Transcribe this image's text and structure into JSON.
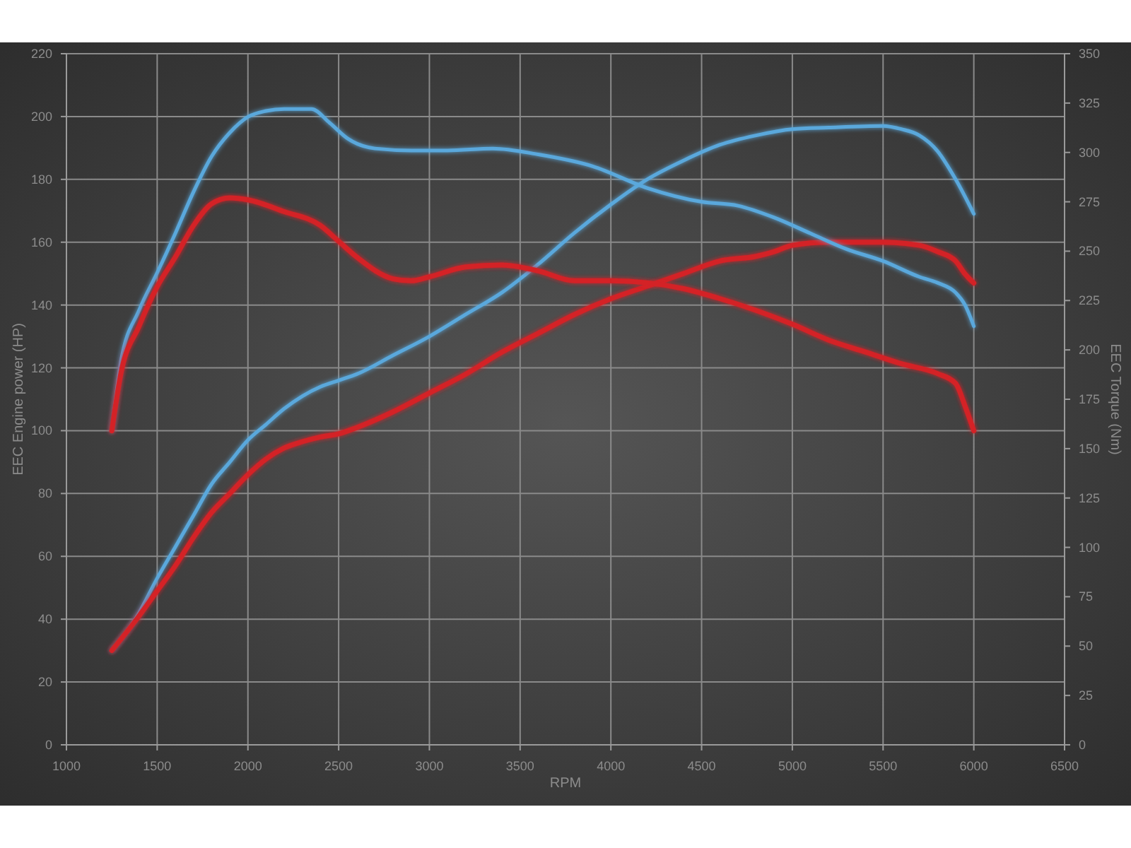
{
  "chart_data": {
    "type": "line",
    "xlabel": "RPM",
    "ylabel": "EEC Engine power (HP)",
    "y2label": "EEC Torque (Nm)",
    "xlim": [
      1000,
      6500
    ],
    "xticks": [
      1000,
      1500,
      2000,
      2500,
      3000,
      3500,
      4000,
      4500,
      5000,
      5500,
      6000,
      6500
    ],
    "ylim": [
      0,
      220
    ],
    "yticks": [
      0,
      20,
      40,
      60,
      80,
      100,
      120,
      140,
      160,
      180,
      200,
      220
    ],
    "y2lim": [
      0,
      350
    ],
    "y2ticks": [
      0,
      25,
      50,
      75,
      100,
      125,
      150,
      175,
      200,
      225,
      250,
      275,
      300,
      325,
      350
    ],
    "grid": true,
    "marker": "none",
    "line_style": "solid",
    "series": [
      {
        "color": "#5aa8dc",
        "x": [
          1250,
          1400,
          1500,
          1600,
          1700,
          1800,
          1900,
          2000,
          2100,
          2200,
          2300,
          2400,
          2500,
          2600,
          2800,
          3000,
          3200,
          3400,
          3600,
          3800,
          4000,
          4200,
          4400,
          4600,
          4800,
          5000,
          5200,
          5500,
          5600,
          5700,
          5800,
          5900,
          6000
        ],
        "values": [
          30,
          42,
          53,
          63,
          73,
          83,
          90,
          97,
          102,
          107,
          111,
          114,
          116,
          118,
          124,
          130,
          137,
          144,
          153,
          163,
          172,
          180,
          186,
          191,
          194,
          196,
          196.5,
          197,
          196,
          194,
          189,
          180,
          169
        ]
      },
      {
        "color": "#d42028",
        "x": [
          1250,
          1400,
          1500,
          1600,
          1700,
          1800,
          1900,
          2000,
          2100,
          2200,
          2300,
          2400,
          2500,
          2600,
          2800,
          3000,
          3200,
          3400,
          3600,
          3800,
          4000,
          4200,
          4400,
          4600,
          4800,
          4900,
          5000,
          5200,
          5500,
          5700,
          5800,
          5900,
          5950,
          6000
        ],
        "values": [
          30,
          41,
          49,
          57,
          66,
          74,
          80,
          86,
          91,
          94.5,
          96.5,
          98,
          99,
          101,
          106,
          112,
          118,
          125,
          131,
          137,
          142,
          146,
          150,
          154,
          155.5,
          157,
          159,
          160,
          160,
          159,
          157,
          154,
          150,
          147
        ]
      },
      {
        "color": "#5aa8dc",
        "axis": "y2",
        "x": [
          1250,
          1300,
          1400,
          1500,
          1600,
          1700,
          1800,
          1900,
          2000,
          2100,
          2200,
          2350,
          2450,
          2550,
          2700,
          2900,
          3100,
          3350,
          3600,
          3900,
          4200,
          4500,
          4700,
          4900,
          5100,
          5300,
          5500,
          5700,
          5800,
          5900,
          5950,
          6000
        ],
        "values": [
          159,
          194,
          220,
          239,
          259,
          280,
          298,
          310,
          318,
          321,
          322,
          322,
          315,
          307,
          302,
          301,
          301,
          302,
          299,
          293,
          282,
          275,
          273,
          267,
          259,
          251,
          245,
          237,
          234,
          229,
          223,
          212
        ]
      },
      {
        "color": "#d42028",
        "axis": "y2",
        "x": [
          1250,
          1300,
          1400,
          1500,
          1600,
          1700,
          1800,
          1900,
          2000,
          2200,
          2400,
          2500,
          2600,
          2800,
          2900,
          3000,
          3200,
          3400,
          3600,
          3800,
          4000,
          4200,
          4400,
          4600,
          4800,
          5000,
          5200,
          5400,
          5600,
          5800,
          5900,
          5950,
          6000
        ],
        "values": [
          159,
          188,
          212,
          232,
          247,
          263,
          274,
          277,
          276,
          270,
          263,
          255,
          247,
          236,
          235,
          237,
          242,
          243,
          240,
          235,
          235,
          234,
          231,
          226,
          220,
          213,
          205,
          199,
          193,
          188,
          183,
          172,
          159
        ]
      }
    ]
  }
}
